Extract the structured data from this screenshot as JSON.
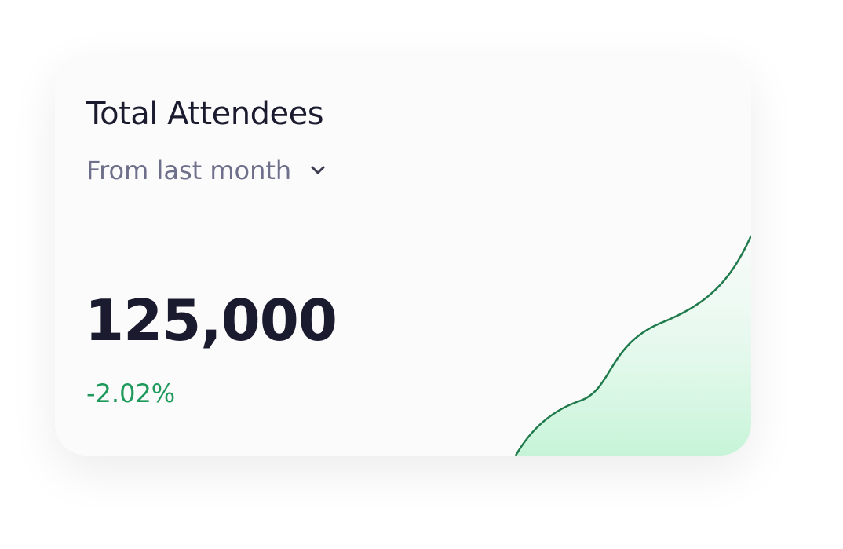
{
  "card": {
    "title": "Total Attendees",
    "period": "From last month",
    "value": "125,000",
    "change": "-2.02%"
  }
}
